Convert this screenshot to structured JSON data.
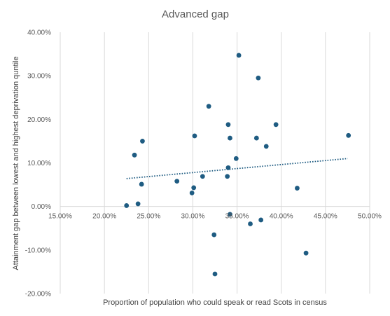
{
  "chart_data": {
    "type": "scatter",
    "title": "Advanced gap",
    "xlabel": "Proportion of population who could speak or read Scots in census",
    "ylabel": "Attainment gap between lowest and highest deprivation quntile",
    "xlim": [
      0.15,
      0.5
    ],
    "ylim": [
      -0.2,
      0.4
    ],
    "x_ticks": [
      0.15,
      0.2,
      0.25,
      0.3,
      0.35,
      0.4,
      0.45,
      0.5
    ],
    "x_tick_labels": [
      "15.00%",
      "20.00%",
      "25.00%",
      "30.00%",
      "35.00%",
      "40.00%",
      "45.00%",
      "50.00%"
    ],
    "y_ticks": [
      0.4,
      0.3,
      0.2,
      0.1,
      0.0,
      -0.1,
      -0.2
    ],
    "y_tick_labels": [
      "40.00%",
      "30.00%",
      "20.00%",
      "10.00%",
      "0.00%",
      "-10.00%",
      "-20.00%"
    ],
    "grid": "vertical major gridlines only",
    "legend": "none",
    "marker_color": "#1f5c82",
    "trendline": {
      "type": "linear",
      "style": "dotted",
      "color": "#1f5c82",
      "x_range": [
        0.225,
        0.475
      ],
      "y_start": 0.064,
      "y_end": 0.11
    },
    "series": [
      {
        "points": [
          {
            "x": 0.225,
            "y": 0.002
          },
          {
            "x": 0.234,
            "y": 0.118
          },
          {
            "x": 0.238,
            "y": 0.006
          },
          {
            "x": 0.242,
            "y": 0.051
          },
          {
            "x": 0.243,
            "y": 0.15
          },
          {
            "x": 0.282,
            "y": 0.058
          },
          {
            "x": 0.299,
            "y": 0.031
          },
          {
            "x": 0.301,
            "y": 0.043
          },
          {
            "x": 0.302,
            "y": 0.162
          },
          {
            "x": 0.311,
            "y": 0.069
          },
          {
            "x": 0.318,
            "y": 0.23
          },
          {
            "x": 0.324,
            "y": -0.065
          },
          {
            "x": 0.325,
            "y": -0.155
          },
          {
            "x": 0.339,
            "y": 0.069
          },
          {
            "x": 0.34,
            "y": 0.089
          },
          {
            "x": 0.34,
            "y": 0.188
          },
          {
            "x": 0.342,
            "y": 0.157
          },
          {
            "x": 0.342,
            "y": -0.018
          },
          {
            "x": 0.349,
            "y": 0.11
          },
          {
            "x": 0.352,
            "y": 0.347
          },
          {
            "x": 0.365,
            "y": -0.04
          },
          {
            "x": 0.372,
            "y": 0.157
          },
          {
            "x": 0.374,
            "y": 0.295
          },
          {
            "x": 0.377,
            "y": -0.031
          },
          {
            "x": 0.383,
            "y": 0.138
          },
          {
            "x": 0.394,
            "y": 0.188
          },
          {
            "x": 0.418,
            "y": 0.042
          },
          {
            "x": 0.428,
            "y": -0.107
          },
          {
            "x": 0.476,
            "y": 0.163
          }
        ]
      }
    ]
  }
}
